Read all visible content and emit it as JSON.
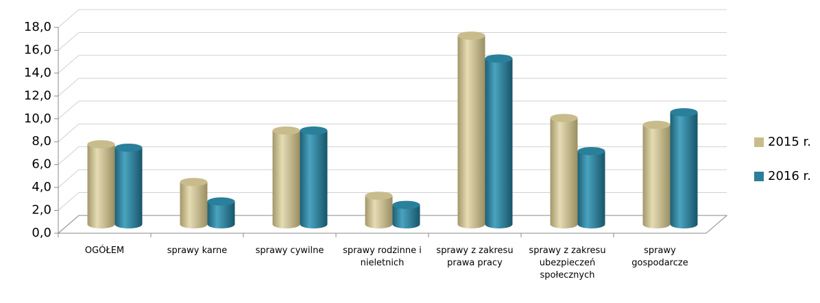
{
  "chart_data": {
    "type": "bar",
    "categories": [
      "OGÓŁEM",
      "sprawy karne",
      "sprawy cywilne",
      "sprawy rodzinne i nieletnich",
      "sprawy z zakresu prawa pracy",
      "sprawy z zakresu ubezpieczeń społecznych",
      "sprawy gospodarcze"
    ],
    "series": [
      {
        "name": "2015 r.",
        "color": "#c8bc8c",
        "values": [
          7.0,
          3.7,
          8.2,
          2.5,
          16.5,
          9.3,
          8.7
        ]
      },
      {
        "name": "2016 r.",
        "color": "#2a7f9b",
        "values": [
          6.7,
          2.0,
          8.2,
          1.7,
          14.5,
          6.4,
          9.8
        ]
      }
    ],
    "ylim": [
      0,
      18
    ],
    "yticks": [
      {
        "value": 0,
        "label": "0,0"
      },
      {
        "value": 2,
        "label": "2,0"
      },
      {
        "value": 4,
        "label": "4,0"
      },
      {
        "value": 6,
        "label": "6,0"
      },
      {
        "value": 8,
        "label": "8,0"
      },
      {
        "value": 10,
        "label": "10,0"
      },
      {
        "value": 12,
        "label": "12,0"
      },
      {
        "value": 14,
        "label": "14,0"
      },
      {
        "value": 16,
        "label": "16,0"
      },
      {
        "value": 18,
        "label": "18,0"
      }
    ],
    "grid": true,
    "legend": "right"
  }
}
